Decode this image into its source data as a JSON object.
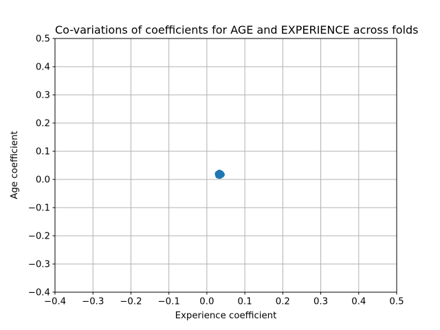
{
  "figure": {
    "background": "#ffffff"
  },
  "style": {
    "grid_color": "#b0b0b0",
    "spine_color": "#000000",
    "tick_color": "#000000",
    "text_color": "#000000",
    "marker_color": "#1f77b4",
    "background": "#ffffff"
  },
  "chart_data": {
    "type": "scatter",
    "title": "Co-variations of coefficients for AGE and EXPERIENCE across folds",
    "xlabel": "Experience coefficient",
    "ylabel": "Age coefficient",
    "xlim": [
      -0.4,
      0.5
    ],
    "ylim": [
      -0.4,
      0.5
    ],
    "xticks": [
      -0.4,
      -0.3,
      -0.2,
      -0.1,
      0.0,
      0.1,
      0.2,
      0.3,
      0.4,
      0.5
    ],
    "yticks": [
      -0.4,
      -0.3,
      -0.2,
      -0.1,
      0.0,
      0.1,
      0.2,
      0.3,
      0.4,
      0.5
    ],
    "xtick_labels": [
      "−0.4",
      "−0.3",
      "−0.2",
      "−0.1",
      "0.0",
      "0.1",
      "0.2",
      "0.3",
      "0.4",
      "0.5"
    ],
    "ytick_labels": [
      "−0.4",
      "−0.3",
      "−0.2",
      "−0.1",
      "0.0",
      "0.1",
      "0.2",
      "0.3",
      "0.4",
      "0.5"
    ],
    "grid": true,
    "legend": false,
    "series": [
      {
        "marker": "circle",
        "color": "#1f77b4",
        "marker_diameter_px": 9,
        "points": [
          [
            0.029,
            0.02
          ],
          [
            0.033,
            0.024
          ],
          [
            0.037,
            0.021
          ],
          [
            0.03,
            0.014
          ],
          [
            0.034,
            0.013
          ],
          [
            0.039,
            0.017
          ],
          [
            0.033,
            0.018
          ]
        ]
      }
    ]
  }
}
